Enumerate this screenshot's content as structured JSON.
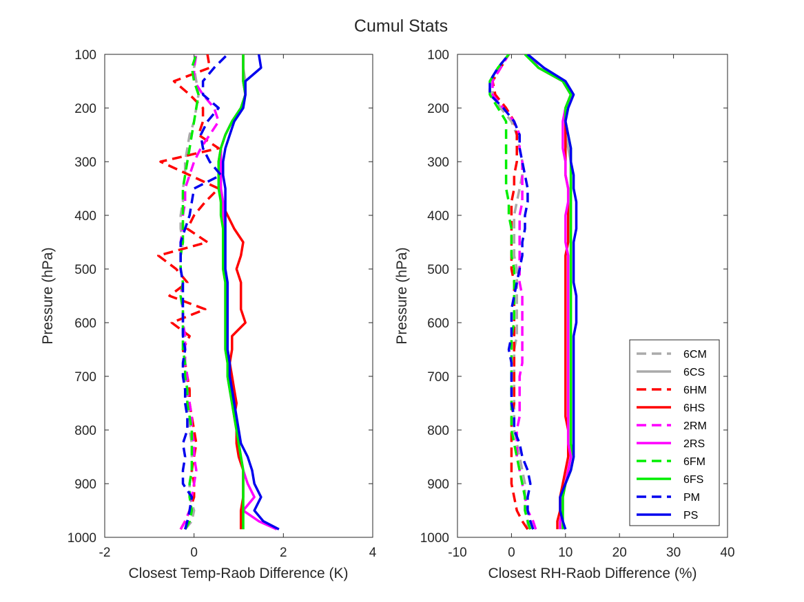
{
  "figure_title": "Cumul Stats",
  "chart_data": [
    {
      "type": "line",
      "xlabel": "Closest Temp-Raob Difference (K)",
      "ylabel": "Pressure (hPa)",
      "xlim": [
        -2,
        4
      ],
      "ylim": [
        100,
        1000
      ],
      "y_reversed": true,
      "xticks": [
        "-2",
        "0",
        "2",
        "4"
      ],
      "yticks": [
        "100",
        "200",
        "300",
        "400",
        "500",
        "600",
        "700",
        "800",
        "900",
        "1000"
      ],
      "y": [
        985,
        970,
        950,
        925,
        900,
        875,
        850,
        825,
        800,
        775,
        750,
        725,
        700,
        675,
        650,
        625,
        600,
        575,
        550,
        525,
        500,
        475,
        450,
        425,
        400,
        375,
        350,
        325,
        300,
        275,
        250,
        225,
        200,
        175,
        150,
        125,
        100
      ],
      "series": [
        {
          "name": "6CM",
          "color": "#aaaaaa",
          "dashed": true,
          "values": [
            -0.2,
            -0.05,
            0.0,
            -0.1,
            -0.1,
            -0.05,
            -0.05,
            -0.05,
            -0.1,
            -0.1,
            -0.15,
            -0.15,
            -0.2,
            -0.2,
            -0.25,
            -0.2,
            -0.25,
            -0.25,
            -0.3,
            -0.25,
            -0.3,
            -0.3,
            -0.25,
            -0.3,
            -0.3,
            -0.25,
            -0.25,
            -0.2,
            -0.2,
            -0.15,
            -0.1,
            0.0,
            0.05,
            0.1,
            0.05,
            0.0,
            0.05
          ]
        },
        {
          "name": "6CS",
          "color": "#aaaaaa",
          "dashed": false,
          "values": [
            1.1,
            1.1,
            1.1,
            1.1,
            1.1,
            1.1,
            1.05,
            1.0,
            0.95,
            0.9,
            0.85,
            0.8,
            0.75,
            0.75,
            0.7,
            0.7,
            0.7,
            0.7,
            0.7,
            0.7,
            0.65,
            0.65,
            0.65,
            0.65,
            0.65,
            0.65,
            0.6,
            0.6,
            0.6,
            0.6,
            0.7,
            0.85,
            1.05,
            1.15,
            1.15,
            1.1,
            1.1
          ]
        },
        {
          "name": "6HM",
          "color": "#ff0000",
          "dashed": true,
          "values": [
            -0.3,
            -0.2,
            -0.1,
            0.0,
            0.0,
            -0.05,
            0.0,
            0.05,
            0.0,
            -0.05,
            -0.1,
            -0.1,
            -0.15,
            -0.2,
            -0.25,
            -0.1,
            -0.5,
            0.25,
            -0.55,
            -0.15,
            -0.4,
            -0.8,
            0.3,
            -0.15,
            0.0,
            0.25,
            0.55,
            -0.1,
            -0.75,
            0.55,
            0.1,
            0.2,
            0.2,
            -0.1,
            -0.45,
            0.35,
            0.3
          ]
        },
        {
          "name": "6HS",
          "color": "#ff0000",
          "dashed": false,
          "values": [
            1.05,
            1.05,
            1.05,
            1.1,
            1.1,
            1.1,
            1.0,
            0.95,
            0.95,
            0.9,
            0.95,
            0.9,
            0.85,
            0.8,
            0.85,
            0.85,
            1.15,
            1.05,
            1.05,
            1.05,
            0.95,
            1.05,
            1.1,
            0.9,
            0.75,
            0.6,
            0.6,
            0.55,
            0.55,
            0.6,
            0.7,
            0.85,
            1.05,
            1.15,
            1.1,
            1.1,
            1.1
          ]
        },
        {
          "name": "2RM",
          "color": "#ff00ff",
          "dashed": true,
          "values": [
            -0.3,
            -0.2,
            -0.1,
            -0.05,
            0.0,
            0.05,
            0.0,
            0.0,
            -0.05,
            -0.05,
            -0.1,
            -0.15,
            -0.15,
            -0.2,
            -0.2,
            -0.2,
            -0.25,
            -0.25,
            -0.3,
            -0.25,
            -0.3,
            -0.3,
            -0.3,
            -0.25,
            -0.25,
            -0.2,
            -0.2,
            -0.1,
            0.0,
            0.15,
            0.35,
            0.55,
            0.45,
            0.2,
            0.0,
            0.0,
            0.05
          ]
        },
        {
          "name": "2RS",
          "color": "#ff00ff",
          "dashed": false,
          "values": [
            1.85,
            1.45,
            1.1,
            1.35,
            1.2,
            1.1,
            1.05,
            1.0,
            0.95,
            0.9,
            0.85,
            0.8,
            0.75,
            0.75,
            0.7,
            0.7,
            0.7,
            0.7,
            0.7,
            0.7,
            0.65,
            0.65,
            0.65,
            0.65,
            0.65,
            0.65,
            0.6,
            0.6,
            0.6,
            0.6,
            0.7,
            0.85,
            1.05,
            1.15,
            1.1,
            1.1,
            1.1
          ]
        },
        {
          "name": "6FM",
          "color": "#00ee00",
          "dashed": true,
          "values": [
            -0.2,
            -0.1,
            -0.05,
            -0.1,
            -0.1,
            -0.05,
            -0.05,
            -0.05,
            -0.05,
            -0.1,
            -0.15,
            -0.15,
            -0.2,
            -0.2,
            -0.25,
            -0.25,
            -0.25,
            -0.25,
            -0.3,
            -0.25,
            -0.3,
            -0.3,
            -0.25,
            -0.25,
            -0.25,
            -0.25,
            -0.25,
            -0.2,
            -0.15,
            -0.1,
            -0.05,
            0.0,
            0.05,
            0.1,
            0.0,
            -0.05,
            0.05
          ]
        },
        {
          "name": "6FS",
          "color": "#00ee00",
          "dashed": false,
          "values": [
            1.1,
            1.1,
            1.1,
            1.1,
            1.1,
            1.1,
            1.05,
            1.0,
            0.95,
            0.9,
            0.85,
            0.8,
            0.75,
            0.75,
            0.7,
            0.7,
            0.7,
            0.7,
            0.7,
            0.7,
            0.65,
            0.65,
            0.65,
            0.65,
            0.6,
            0.6,
            0.55,
            0.55,
            0.55,
            0.6,
            0.7,
            0.85,
            1.05,
            1.15,
            1.1,
            1.1,
            1.1
          ]
        },
        {
          "name": "PM",
          "color": "#0000ee",
          "dashed": true,
          "values": [
            -0.2,
            -0.15,
            -0.1,
            -0.05,
            -0.25,
            -0.25,
            -0.2,
            -0.25,
            -0.15,
            -0.15,
            -0.2,
            -0.2,
            -0.25,
            -0.25,
            -0.2,
            -0.25,
            -0.25,
            -0.25,
            -0.25,
            -0.25,
            -0.3,
            -0.3,
            -0.3,
            -0.2,
            -0.1,
            -0.05,
            0.0,
            0.6,
            0.35,
            0.2,
            0.15,
            0.3,
            0.55,
            0.2,
            0.2,
            0.45,
            0.75
          ]
        },
        {
          "name": "PS",
          "color": "#0000ee",
          "dashed": false,
          "values": [
            1.9,
            1.55,
            1.35,
            1.5,
            1.35,
            1.3,
            1.2,
            1.05,
            1.0,
            0.95,
            0.9,
            0.85,
            0.8,
            0.8,
            0.75,
            0.75,
            0.75,
            0.75,
            0.75,
            0.75,
            0.7,
            0.7,
            0.7,
            0.7,
            0.7,
            0.7,
            0.7,
            0.65,
            0.65,
            0.7,
            0.8,
            0.9,
            1.1,
            1.15,
            1.15,
            1.5,
            1.45
          ]
        }
      ]
    },
    {
      "type": "line",
      "xlabel": "Closest RH-Raob Difference (%)",
      "ylabel": "Pressure (hPa)",
      "xlim": [
        -10,
        40
      ],
      "ylim": [
        100,
        1000
      ],
      "y_reversed": true,
      "xticks": [
        "-10",
        "0",
        "10",
        "20",
        "30",
        "40"
      ],
      "yticks": [
        "100",
        "200",
        "300",
        "400",
        "500",
        "600",
        "700",
        "800",
        "900",
        "1000"
      ],
      "y": [
        985,
        970,
        950,
        925,
        900,
        875,
        850,
        825,
        800,
        775,
        750,
        725,
        700,
        675,
        650,
        625,
        600,
        575,
        550,
        525,
        500,
        475,
        450,
        425,
        400,
        375,
        350,
        325,
        300,
        275,
        250,
        225,
        200,
        175,
        150,
        125,
        100
      ],
      "series": [
        {
          "name": "6CM",
          "color": "#aaaaaa",
          "dashed": true,
          "values": [
            3.0,
            3.0,
            2.5,
            2.5,
            2.5,
            2.0,
            1.5,
            1.0,
            0.5,
            0.5,
            0.5,
            0.5,
            0.5,
            0.5,
            0.5,
            1.0,
            1.0,
            1.0,
            1.0,
            1.0,
            1.0,
            0.5,
            0.5,
            0.5,
            0.5,
            1.0,
            1.5,
            2.0,
            2.0,
            1.5,
            1.0,
            0.0,
            -2.0,
            -3.5,
            -3.5,
            -2.0,
            -0.5
          ]
        },
        {
          "name": "6CS",
          "color": "#aaaaaa",
          "dashed": false,
          "values": [
            9.5,
            9.5,
            9.5,
            9.5,
            10.0,
            10.5,
            11.0,
            11.0,
            11.0,
            11.0,
            11.0,
            11.0,
            11.0,
            11.0,
            11.0,
            11.0,
            11.0,
            11.0,
            11.0,
            11.0,
            11.0,
            11.0,
            11.0,
            11.0,
            11.0,
            11.0,
            11.0,
            11.0,
            11.0,
            10.5,
            10.0,
            10.0,
            10.0,
            11.0,
            9.5,
            5.0,
            3.0
          ]
        },
        {
          "name": "6HM",
          "color": "#ff0000",
          "dashed": true,
          "values": [
            3.0,
            2.0,
            1.0,
            0.5,
            0.0,
            0.0,
            0.0,
            0.0,
            0.0,
            0.0,
            0.5,
            0.5,
            0.5,
            0.5,
            0.5,
            0.5,
            0.5,
            0.5,
            0.5,
            0.5,
            0.0,
            0.0,
            0.0,
            0.0,
            0.0,
            0.0,
            0.5,
            0.5,
            1.0,
            1.0,
            1.0,
            0.5,
            -1.0,
            -3.0,
            -3.5,
            -2.0,
            -0.5
          ]
        },
        {
          "name": "6HS",
          "color": "#ff0000",
          "dashed": false,
          "values": [
            8.5,
            8.5,
            9.0,
            9.0,
            9.5,
            10.0,
            10.5,
            10.5,
            10.5,
            10.0,
            10.0,
            10.0,
            10.0,
            10.0,
            10.0,
            10.0,
            10.0,
            10.0,
            10.0,
            10.0,
            10.0,
            10.0,
            10.5,
            10.5,
            10.5,
            10.5,
            10.5,
            10.0,
            10.0,
            10.0,
            10.0,
            10.0,
            10.0,
            11.0,
            9.5,
            5.0,
            3.0
          ]
        },
        {
          "name": "2RM",
          "color": "#ff00ff",
          "dashed": true,
          "values": [
            4.5,
            4.0,
            3.0,
            2.5,
            2.0,
            1.5,
            1.0,
            1.0,
            1.0,
            1.5,
            1.5,
            1.5,
            1.5,
            2.0,
            2.0,
            2.0,
            2.0,
            2.0,
            2.0,
            1.5,
            1.5,
            1.5,
            1.5,
            1.5,
            1.5,
            2.0,
            2.0,
            2.0,
            2.0,
            1.5,
            1.5,
            0.5,
            -1.5,
            -3.5,
            -3.5,
            -2.0,
            -0.5
          ]
        },
        {
          "name": "2RS",
          "color": "#ff00ff",
          "dashed": false,
          "values": [
            9.0,
            9.0,
            9.5,
            9.5,
            10.0,
            10.5,
            11.0,
            10.5,
            10.5,
            10.5,
            10.5,
            10.5,
            10.5,
            10.5,
            10.5,
            10.5,
            10.5,
            10.5,
            10.5,
            10.5,
            10.5,
            10.5,
            10.0,
            10.0,
            10.0,
            10.5,
            10.5,
            10.0,
            10.0,
            9.5,
            9.5,
            9.5,
            10.0,
            11.0,
            9.5,
            5.0,
            3.0
          ]
        },
        {
          "name": "6FM",
          "color": "#00ee00",
          "dashed": true,
          "values": [
            3.5,
            3.0,
            2.5,
            2.5,
            2.0,
            1.5,
            1.0,
            0.5,
            0.0,
            0.0,
            0.0,
            0.0,
            0.0,
            0.0,
            0.0,
            0.0,
            0.5,
            0.5,
            0.5,
            0.5,
            0.5,
            0.0,
            0.0,
            0.0,
            -0.5,
            -0.5,
            -1.0,
            -1.0,
            -1.0,
            -1.0,
            -1.0,
            -1.0,
            -2.5,
            -4.0,
            -4.0,
            -2.5,
            -0.5
          ]
        },
        {
          "name": "6FS",
          "color": "#00ee00",
          "dashed": false,
          "values": [
            9.5,
            9.5,
            9.5,
            9.5,
            10.0,
            11.0,
            11.5,
            11.0,
            11.0,
            11.0,
            11.0,
            11.0,
            11.0,
            11.0,
            11.0,
            11.0,
            11.0,
            11.0,
            11.0,
            11.0,
            11.0,
            11.0,
            11.0,
            11.0,
            11.0,
            11.0,
            11.0,
            11.0,
            11.0,
            11.0,
            10.5,
            10.0,
            10.0,
            11.0,
            9.5,
            5.0,
            2.5
          ]
        },
        {
          "name": "PM",
          "color": "#0000ee",
          "dashed": true,
          "values": [
            4.0,
            3.5,
            3.0,
            3.0,
            3.5,
            3.0,
            2.0,
            1.5,
            0.5,
            0.5,
            0.0,
            0.0,
            0.0,
            0.0,
            -0.5,
            0.0,
            0.0,
            0.0,
            0.5,
            1.0,
            1.5,
            2.0,
            2.0,
            2.5,
            2.5,
            3.0,
            3.0,
            2.5,
            2.0,
            1.5,
            1.5,
            0.5,
            -1.5,
            -4.0,
            -4.0,
            -2.5,
            -0.5
          ]
        },
        {
          "name": "PS",
          "color": "#0000ee",
          "dashed": false,
          "values": [
            10.0,
            9.5,
            9.0,
            9.0,
            10.0,
            11.0,
            11.5,
            11.5,
            11.5,
            11.5,
            11.5,
            11.5,
            11.5,
            11.5,
            11.5,
            11.5,
            12.0,
            12.0,
            12.0,
            11.5,
            11.5,
            11.5,
            11.5,
            12.0,
            12.0,
            12.0,
            11.5,
            11.5,
            11.0,
            11.0,
            10.5,
            10.0,
            10.5,
            11.5,
            10.0,
            6.0,
            3.0
          ]
        }
      ]
    }
  ],
  "legend": {
    "placement": "bottom-right",
    "items": [
      "6CM",
      "6CS",
      "6HM",
      "6HS",
      "2RM",
      "2RS",
      "6FM",
      "6FS",
      "PM",
      "PS"
    ]
  }
}
